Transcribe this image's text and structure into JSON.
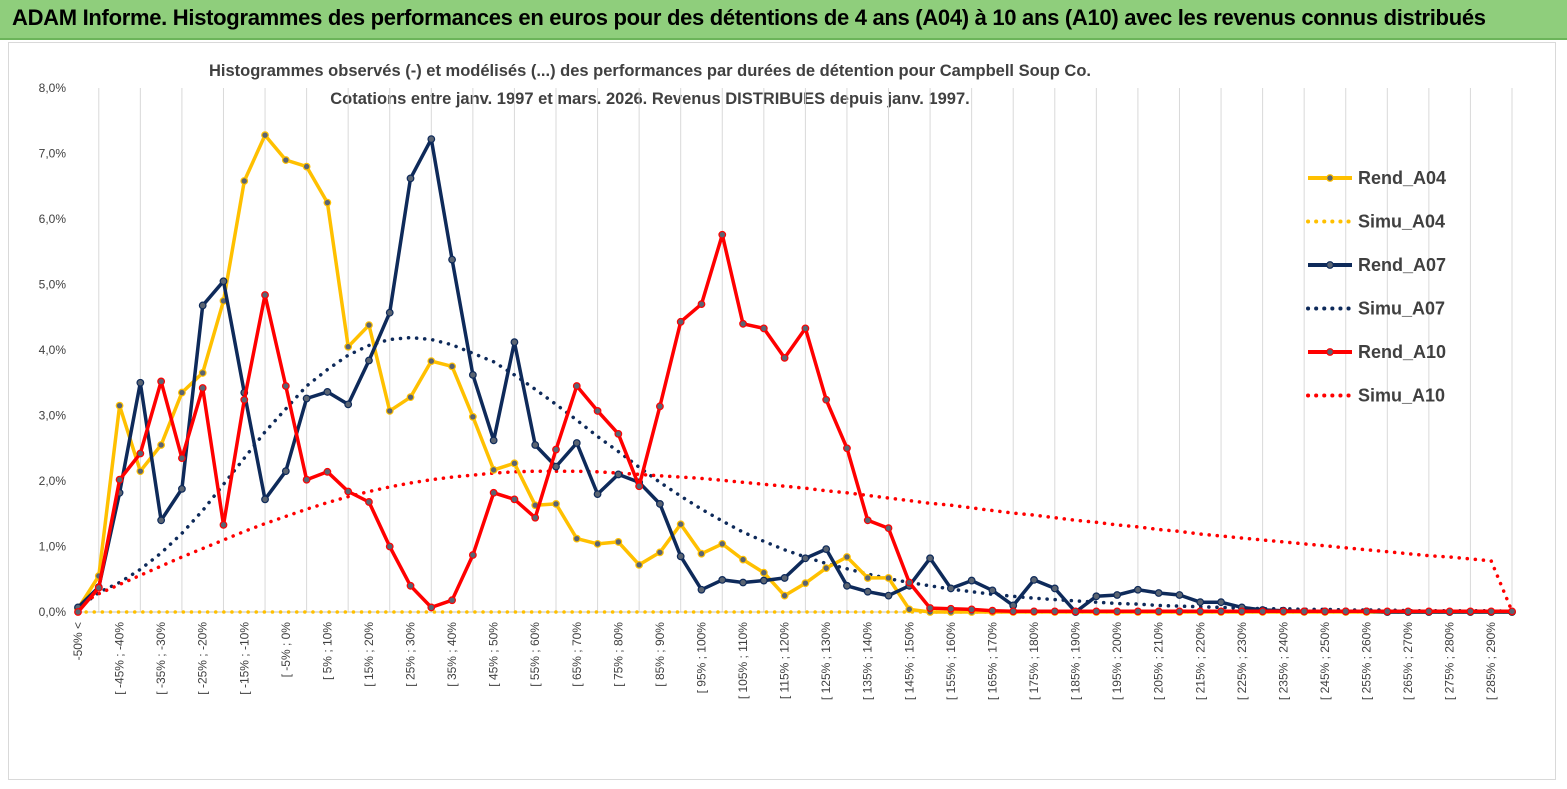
{
  "banner": {
    "title": "ADAM Informe. Histogrammes des performances en euros pour des détentions de 4 ans (A04) à 10 ans (A10) avec les revenus connus distribués"
  },
  "chart_data": {
    "type": "line",
    "title": "Histogrammes observés (-) et modélisés (...) des performances par durées de détention pour Campbell Soup Co.",
    "subtitle": "Cotations entre janv. 1997 et mars. 2026. Revenus DISTRIBUES depuis janv. 1997.",
    "ylim": [
      0,
      8
    ],
    "y_ticks": [
      0,
      1,
      2,
      3,
      4,
      5,
      6,
      7,
      8
    ],
    "y_tick_labels": [
      "0,0%",
      "1,0%",
      "2,0%",
      "3,0%",
      "4,0%",
      "5,0%",
      "6,0%",
      "7,0%",
      "8,0%"
    ],
    "x_tick_labels": [
      "-50% <",
      "[ -45% ; -40%",
      "[ -35% ; -30%",
      "[ -25% ; -20%",
      "[ -15% ; -10%",
      "[ -5% ; 0%",
      "[ 5% ; 10%",
      "[ 15% ; 20%",
      "[ 25% ; 30%",
      "[ 35% ; 40%",
      "[ 45% ; 50%",
      "[ 55% ; 60%",
      "[ 65% ; 70%",
      "[ 75% ; 80%",
      "[ 85% ; 90%",
      "[ 95% ; 100%",
      "[ 105% ; 110%",
      "[ 115% ; 120%",
      "[ 125% ; 130%",
      "[ 135% ; 140%",
      "[ 145% ; 150%",
      "[ 155% ; 160%",
      "[ 165% ; 170%",
      "[ 175% ; 180%",
      "[ 185% ; 190%",
      "[ 195% ; 200%",
      "[ 205% ; 210%",
      "[ 215% ; 220%",
      "[ 225% ; 230%",
      "[ 235% ; 240%",
      "[ 245% ; 250%",
      "[ 255% ; 260%",
      "[ 265% ; 270%",
      "[ 275% ; 280%",
      "[ 285% ; 290%"
    ],
    "n_points": 70,
    "series": [
      {
        "name": "Rend_A04",
        "color": "#ffc000",
        "style": "solid",
        "markers": true,
        "values": [
          0.05,
          0.55,
          3.15,
          2.15,
          2.55,
          3.35,
          3.65,
          4.75,
          6.58,
          7.28,
          6.9,
          6.8,
          6.25,
          4.05,
          4.38,
          3.07,
          3.28,
          3.83,
          3.75,
          2.98,
          2.17,
          2.27,
          1.63,
          1.65,
          1.12,
          1.04,
          1.07,
          0.72,
          0.91,
          1.34,
          0.89,
          1.04,
          0.8,
          0.6,
          0.25,
          0.44,
          0.67,
          0.84,
          0.52,
          0.52,
          0.04,
          0.0,
          0,
          0,
          0,
          0,
          0,
          0,
          0,
          0,
          0,
          0,
          0,
          0,
          0,
          0,
          0,
          0,
          0,
          0,
          0,
          0,
          0,
          0,
          0,
          0,
          0,
          0,
          0,
          0
        ]
      },
      {
        "name": "Simu_A04",
        "color": "#ffc000",
        "style": "dotted",
        "markers": false,
        "values": [
          0.0,
          0.0,
          0.0,
          0.0,
          0.0,
          0.0,
          0.0,
          0.0,
          0.0,
          0.0,
          0.0,
          0.0,
          0.0,
          0.0,
          0.0,
          0.0,
          0.0,
          0.0,
          0.0,
          0.0,
          0.0,
          0.0,
          0.0,
          0.0,
          0.0,
          0.0,
          0.0,
          0.0,
          0.0,
          0.0,
          0.0,
          0.0,
          0.0,
          0.0,
          0.0,
          0.0,
          0.0,
          0.0,
          0.0,
          0.0,
          0.0,
          0.0,
          0.0,
          0.0,
          0.0,
          0.0,
          0.0,
          0.0,
          0.0,
          0.0,
          0.0,
          0.0,
          0.0,
          0.0,
          0.0,
          0.0,
          0.0,
          0.0,
          0.0,
          0.0,
          0.0,
          0.0,
          0.0,
          0.0,
          0.0,
          0.0,
          0.0,
          0.0,
          0.0,
          0.0
        ]
      },
      {
        "name": "Rend_A07",
        "color": "#0e2a5a",
        "style": "solid",
        "markers": true,
        "values": [
          0.07,
          0.38,
          1.82,
          3.5,
          1.4,
          1.88,
          4.68,
          5.05,
          3.35,
          1.72,
          2.15,
          3.26,
          3.36,
          3.17,
          3.84,
          4.57,
          6.62,
          7.22,
          5.38,
          3.62,
          2.62,
          4.12,
          2.55,
          2.22,
          2.58,
          1.8,
          2.1,
          1.98,
          1.65,
          0.85,
          0.34,
          0.49,
          0.45,
          0.48,
          0.52,
          0.82,
          0.96,
          0.4,
          0.31,
          0.25,
          0.4,
          0.82,
          0.36,
          0.48,
          0.33,
          0.1,
          0.49,
          0.36,
          0.0,
          0.24,
          0.26,
          0.34,
          0.29,
          0.26,
          0.15,
          0.15,
          0.07,
          0.03,
          0.02,
          0.01,
          0.01,
          0.01,
          0.01,
          0.0,
          0.0,
          0.0,
          0.0,
          0.0,
          0.0,
          0.0
        ]
      },
      {
        "name": "Simu_A07",
        "color": "#0e2a5a",
        "style": "dotted",
        "markers": false,
        "values": [
          0.05,
          0.3,
          0.45,
          0.65,
          0.9,
          1.2,
          1.55,
          1.95,
          2.35,
          2.75,
          3.1,
          3.45,
          3.7,
          3.92,
          4.07,
          4.16,
          4.19,
          4.16,
          4.08,
          3.95,
          3.82,
          3.62,
          3.4,
          3.17,
          2.93,
          2.68,
          2.45,
          2.21,
          1.98,
          1.77,
          1.57,
          1.39,
          1.22,
          1.08,
          0.95,
          0.84,
          0.74,
          0.66,
          0.58,
          0.51,
          0.45,
          0.4,
          0.35,
          0.31,
          0.27,
          0.24,
          0.21,
          0.19,
          0.17,
          0.15,
          0.13,
          0.12,
          0.1,
          0.09,
          0.08,
          0.07,
          0.06,
          0.05,
          0.05,
          0.04,
          0.04,
          0.03,
          0.03,
          0.03,
          0.02,
          0.02,
          0.02,
          0.02,
          0.02,
          0.01
        ]
      },
      {
        "name": "Rend_A10",
        "color": "#ff0000",
        "style": "solid",
        "markers": true,
        "values": [
          0.0,
          0.37,
          2.02,
          2.42,
          3.52,
          2.35,
          3.42,
          1.33,
          3.24,
          4.84,
          3.45,
          2.02,
          2.14,
          1.84,
          1.68,
          1.0,
          0.4,
          0.07,
          0.18,
          0.87,
          1.82,
          1.72,
          1.44,
          2.48,
          3.45,
          3.07,
          2.72,
          1.92,
          3.14,
          4.43,
          4.7,
          5.76,
          4.4,
          4.33,
          3.88,
          4.33,
          3.24,
          2.5,
          1.4,
          1.28,
          0.45,
          0.06,
          0.05,
          0.04,
          0.02,
          0.01,
          0.01,
          0.01,
          0.01,
          0.01,
          0.01,
          0.01,
          0.01,
          0.01,
          0.01,
          0.01,
          0.01,
          0.01,
          0.01,
          0.01,
          0.01,
          0.01,
          0.01,
          0.01,
          0.01,
          0.01,
          0.01,
          0.01,
          0.01,
          0.01
        ]
      },
      {
        "name": "Simu_A10",
        "color": "#ff0000",
        "style": "dotted",
        "markers": false,
        "values": [
          0.1,
          0.28,
          0.42,
          0.56,
          0.7,
          0.84,
          0.97,
          1.1,
          1.23,
          1.35,
          1.46,
          1.57,
          1.67,
          1.76,
          1.84,
          1.91,
          1.97,
          2.02,
          2.06,
          2.09,
          2.12,
          2.14,
          2.15,
          2.15,
          2.15,
          2.14,
          2.12,
          2.1,
          2.08,
          2.06,
          2.04,
          2.01,
          1.98,
          1.95,
          1.92,
          1.89,
          1.85,
          1.82,
          1.78,
          1.74,
          1.7,
          1.66,
          1.63,
          1.59,
          1.55,
          1.51,
          1.48,
          1.44,
          1.4,
          1.37,
          1.33,
          1.3,
          1.26,
          1.23,
          1.19,
          1.16,
          1.13,
          1.1,
          1.07,
          1.04,
          1.01,
          0.98,
          0.95,
          0.92,
          0.89,
          0.86,
          0.84,
          0.81,
          0.78,
          0.01
        ]
      }
    ],
    "legend_position": "right"
  }
}
